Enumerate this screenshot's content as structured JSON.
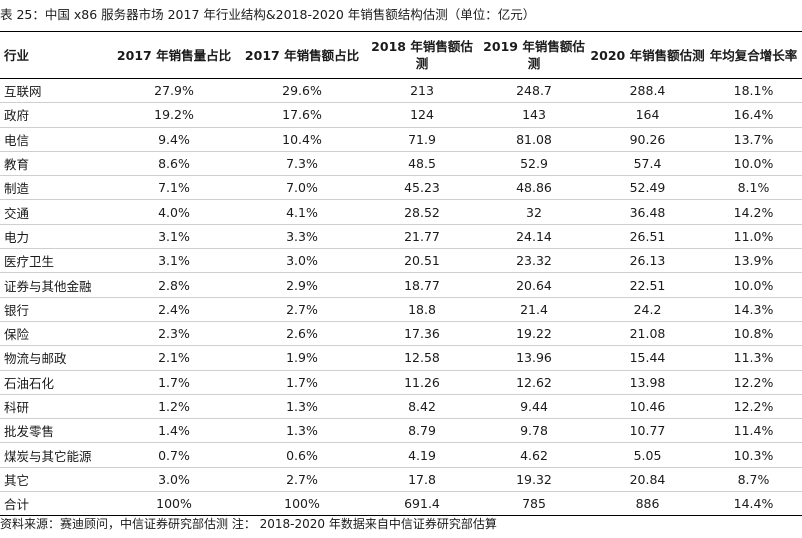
{
  "caption": "表 25：中国 x86 服务器市场 2017 年行业结构&2018-2020 年销售额结构估测（单位：亿元）",
  "columns": [
    "行业",
    "2017 年销售量占比",
    "2017 年销售额占比",
    "2018 年销售额估测",
    "2019 年销售额估测",
    "2020 年销售额估测",
    "年均复合增长率"
  ],
  "rows": [
    [
      "互联网",
      "27.9%",
      "29.6%",
      "213",
      "248.7",
      "288.4",
      "18.1%"
    ],
    [
      "政府",
      "19.2%",
      "17.6%",
      "124",
      "143",
      "164",
      "16.4%"
    ],
    [
      "电信",
      "9.4%",
      "10.4%",
      "71.9",
      "81.08",
      "90.26",
      "13.7%"
    ],
    [
      "教育",
      "8.6%",
      "7.3%",
      "48.5",
      "52.9",
      "57.4",
      "10.0%"
    ],
    [
      "制造",
      "7.1%",
      "7.0%",
      "45.23",
      "48.86",
      "52.49",
      "8.1%"
    ],
    [
      "交通",
      "4.0%",
      "4.1%",
      "28.52",
      "32",
      "36.48",
      "14.2%"
    ],
    [
      "电力",
      "3.1%",
      "3.3%",
      "21.77",
      "24.14",
      "26.51",
      "11.0%"
    ],
    [
      "医疗卫生",
      "3.1%",
      "3.0%",
      "20.51",
      "23.32",
      "26.13",
      "13.9%"
    ],
    [
      "证券与其他金融",
      "2.8%",
      "2.9%",
      "18.77",
      "20.64",
      "22.51",
      "10.0%"
    ],
    [
      "银行",
      "2.4%",
      "2.7%",
      "18.8",
      "21.4",
      "24.2",
      "14.3%"
    ],
    [
      "保险",
      "2.3%",
      "2.6%",
      "17.36",
      "19.22",
      "21.08",
      "10.8%"
    ],
    [
      "物流与邮政",
      "2.1%",
      "1.9%",
      "12.58",
      "13.96",
      "15.44",
      "11.3%"
    ],
    [
      "石油石化",
      "1.7%",
      "1.7%",
      "11.26",
      "12.62",
      "13.98",
      "12.2%"
    ],
    [
      "科研",
      "1.2%",
      "1.3%",
      "8.42",
      "9.44",
      "10.46",
      "12.2%"
    ],
    [
      "批发零售",
      "1.4%",
      "1.3%",
      "8.79",
      "9.78",
      "10.77",
      "11.4%"
    ],
    [
      "煤炭与其它能源",
      "0.7%",
      "0.6%",
      "4.19",
      "4.62",
      "5.05",
      "10.3%"
    ],
    [
      "其它",
      "3.0%",
      "2.7%",
      "17.8",
      "19.32",
      "20.84",
      "8.7%"
    ],
    [
      "合计",
      "100%",
      "100%",
      "691.4",
      "785",
      "886",
      "14.4%"
    ]
  ],
  "source_note": "资料来源：赛迪顾问，中信证券研究部估测    注： 2018-2020 年数据来自中信证券研究部估算"
}
